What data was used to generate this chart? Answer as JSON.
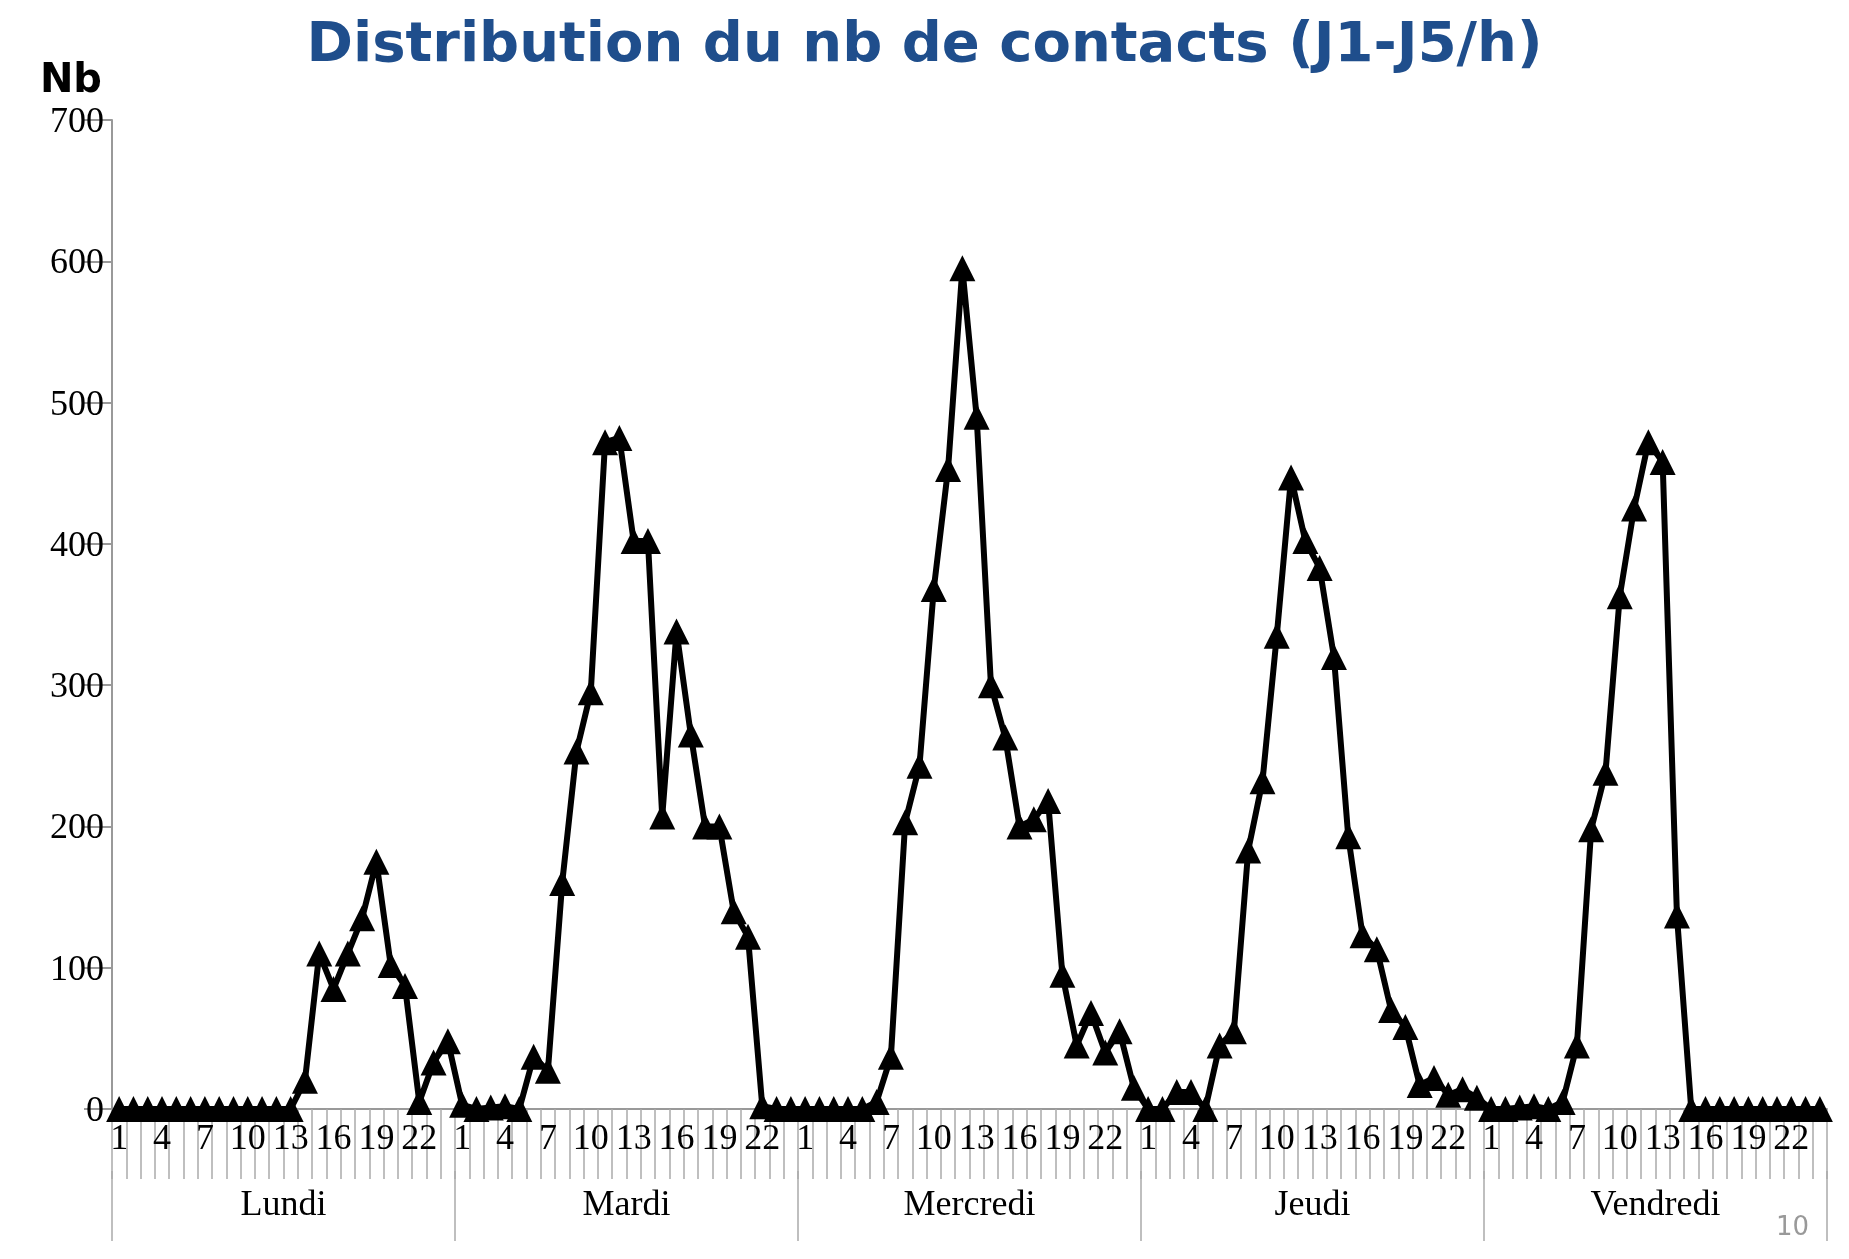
{
  "chart_data": {
    "type": "line",
    "title": "Distribution du nb de contacts (J1-J5/h)",
    "ylabel": "Nb",
    "categories": [
      "1",
      null,
      null,
      "4",
      null,
      null,
      "7",
      null,
      null,
      "10",
      null,
      null,
      "13",
      null,
      null,
      "16",
      null,
      null,
      "19",
      null,
      null,
      "22",
      null,
      null,
      "1",
      null,
      null,
      "4",
      null,
      null,
      "7",
      null,
      null,
      "10",
      null,
      null,
      "13",
      null,
      null,
      "16",
      null,
      null,
      "19",
      null,
      null,
      "22",
      null,
      null,
      "1",
      null,
      null,
      "4",
      null,
      null,
      "7",
      null,
      null,
      "10",
      null,
      null,
      "13",
      null,
      null,
      "16",
      null,
      null,
      "19",
      null,
      null,
      "22",
      null,
      null,
      "1",
      null,
      null,
      "4",
      null,
      null,
      "7",
      null,
      null,
      "10",
      null,
      null,
      "13",
      null,
      null,
      "16",
      null,
      null,
      "19",
      null,
      null,
      "22",
      null,
      null,
      "1",
      null,
      null,
      "4",
      null,
      null,
      "7",
      null,
      null,
      "10",
      null,
      null,
      "13",
      null,
      null,
      "16",
      null,
      null,
      "19",
      null,
      null,
      "22",
      null,
      null
    ],
    "series": [
      {
        "color": "#000000",
        "values": [
          0,
          0,
          0,
          0,
          0,
          0,
          0,
          0,
          0,
          0,
          0,
          0,
          0,
          20,
          110,
          85,
          110,
          135,
          175,
          102,
          87,
          5,
          33,
          48,
          3,
          0,
          1,
          2,
          0,
          37,
          27,
          160,
          253,
          295,
          472,
          475,
          402,
          402,
          207,
          338,
          265,
          200,
          200,
          140,
          122,
          2,
          0,
          0,
          0,
          0,
          0,
          0,
          0,
          5,
          37,
          203,
          243,
          368,
          453,
          595,
          490,
          300,
          263,
          200,
          205,
          218,
          95,
          45,
          68,
          40,
          55,
          15,
          0,
          0,
          12,
          12,
          0,
          45,
          55,
          183,
          232,
          335,
          447,
          402,
          383,
          320,
          193,
          123,
          113,
          70,
          58,
          17,
          22,
          10,
          14,
          8,
          0,
          0,
          1,
          2,
          0,
          5,
          45,
          198,
          238,
          363,
          425,
          472,
          458,
          137,
          0,
          0,
          0,
          0,
          0,
          0,
          0,
          0,
          0,
          0
        ]
      }
    ],
    "annotations": [
      "Lundi",
      "Mardi",
      "Mercredi",
      "Jeudi",
      "Vendredi",
      "10"
    ],
    "ylim": [
      0,
      700
    ],
    "yticks": [
      0,
      100,
      200,
      300,
      400,
      500,
      600,
      700
    ],
    "grid": false,
    "marker": "triangle",
    "line_style": "solid"
  }
}
